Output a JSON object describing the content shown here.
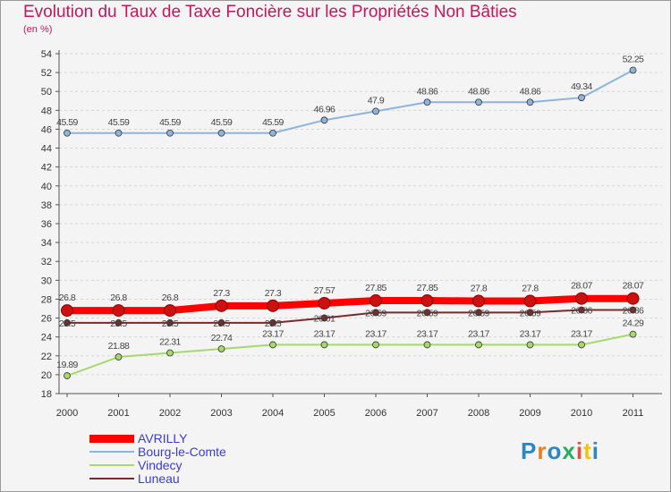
{
  "title": "Evolution du Taux de Taxe Foncière sur les Propriétés Non Bâties",
  "unit": "(en %)",
  "logo": {
    "letters": [
      "P",
      "r",
      "o",
      "x",
      "i",
      "t",
      "i"
    ],
    "colors": [
      "#2e86c1",
      "#e67e22",
      "#2e86c1",
      "#27ae60",
      "#e74c3c",
      "#f1c40f",
      "#2e86c1"
    ]
  },
  "chart_data": {
    "type": "line",
    "title": "Evolution du Taux de Taxe Foncière sur les Propriétés Non Bâties",
    "ylabel": "(en %)",
    "xlabel": "",
    "ylim": [
      18,
      54
    ],
    "yticks": [
      "18",
      "20",
      "22",
      "24",
      "26",
      "28",
      "30",
      "32",
      "34",
      "36",
      "38",
      "40",
      "42",
      "44",
      "46",
      "48",
      "50",
      "52",
      "54"
    ],
    "categories": [
      "2000",
      "2001",
      "2002",
      "2003",
      "2004",
      "2005",
      "2006",
      "2007",
      "2008",
      "2009",
      "2010",
      "2011"
    ],
    "legend_position": "bottom-left",
    "series": [
      {
        "name": "AVRILLY",
        "color": "#ff0000",
        "values": [
          26.8,
          26.8,
          26.8,
          27.3,
          27.3,
          27.57,
          27.85,
          27.85,
          27.8,
          27.8,
          28.07,
          28.07
        ],
        "labels": [
          "26.8",
          "26.8",
          "26.8",
          "27.3",
          "27.3",
          "27.57",
          "27.85",
          "27.85",
          "27.8",
          "27.8",
          "28.07",
          "28.07"
        ]
      },
      {
        "name": "Bourg-le-Comte",
        "color": "#8fb4dc",
        "values": [
          45.59,
          45.59,
          45.59,
          45.59,
          45.59,
          46.96,
          47.9,
          48.86,
          48.86,
          48.86,
          49.34,
          52.25
        ],
        "labels": [
          "45.59",
          "45.59",
          "45.59",
          "45.59",
          "45.59",
          "46.96",
          "47.9",
          "48.86",
          "48.86",
          "48.86",
          "49.34",
          "52.25"
        ]
      },
      {
        "name": "Vindecy",
        "color": "#a6d96a",
        "values": [
          19.89,
          21.88,
          22.31,
          22.74,
          23.17,
          23.17,
          23.17,
          23.17,
          23.17,
          23.17,
          23.17,
          24.29
        ],
        "labels": [
          "19.89",
          "21.88",
          "22.31",
          "22.74",
          "23.17",
          "23.17",
          "23.17",
          "23.17",
          "23.17",
          "23.17",
          "23.17",
          "24.29"
        ]
      },
      {
        "name": "Luneau",
        "color": "#7a2a2a",
        "values": [
          25.5,
          25.5,
          25.5,
          25.5,
          25.5,
          26.01,
          26.59,
          26.59,
          26.59,
          26.59,
          26.86,
          26.86
        ],
        "labels": [
          "25.5",
          "25.5",
          "25.5",
          "25.5",
          "25.5",
          "26.01",
          "26.59",
          "26.59",
          "26.59",
          "26.59",
          "26.86",
          "26.86"
        ]
      }
    ]
  }
}
